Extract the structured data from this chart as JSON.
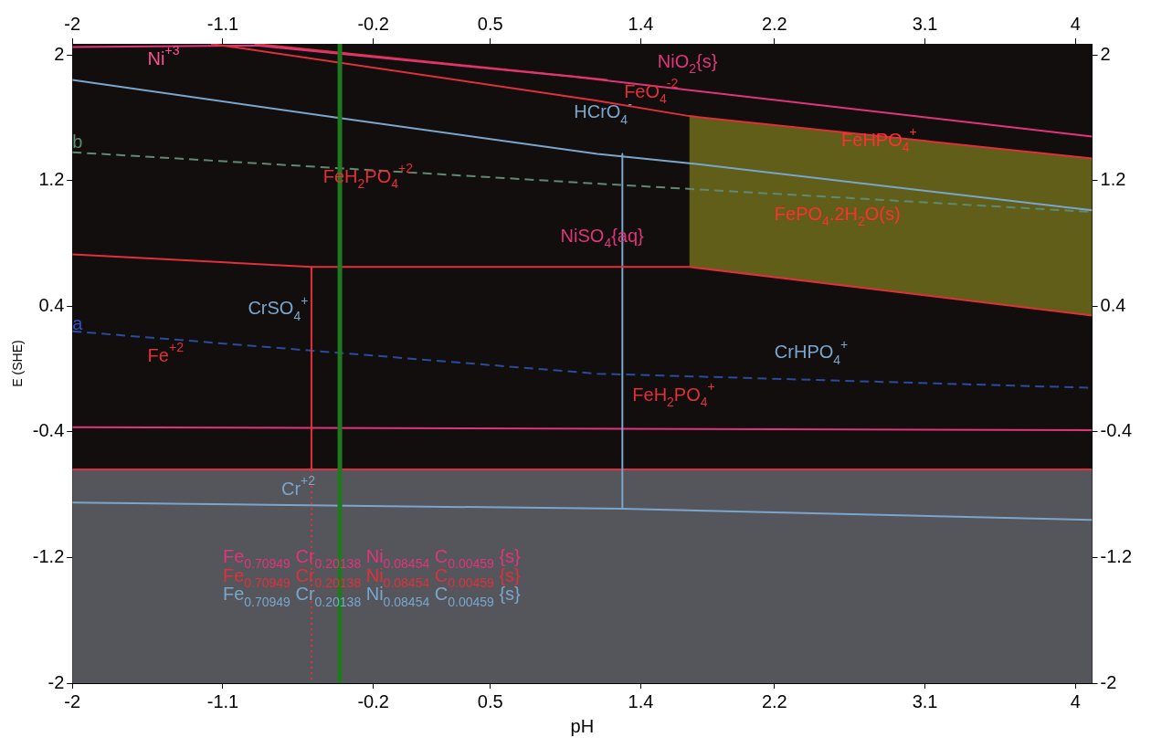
{
  "chart_data": {
    "type": "line",
    "xlabel": "pH",
    "ylabel": "E (SHE)",
    "xlim": [
      -2,
      4.1
    ],
    "ylim": [
      -2,
      2.07
    ],
    "x2lim": [
      -2,
      4.1
    ],
    "y2lim": [
      -2,
      2.07
    ],
    "xticks": [
      -2,
      -1.1,
      -0.2,
      0.5,
      1.4,
      2.2,
      3.1,
      4
    ],
    "x2ticks": [
      -2,
      -1.1,
      -0.2,
      0.5,
      1.4,
      2.2,
      3.1,
      4
    ],
    "yticks": [
      2,
      1.2,
      0.4,
      -0.4,
      -1.2,
      -2
    ],
    "y2ticks": [
      2,
      1.2,
      0.4,
      -0.4,
      -1.2,
      -2
    ],
    "grid": false,
    "legend": false,
    "series": [
      {
        "color": "#e0303a",
        "x": [
          -1.17,
          1.13,
          1.69,
          4.1
        ],
        "values": [
          2.07,
          1.71,
          1.61,
          1.34
        ],
        "upper": [
          null,
          null,
          1.61,
          1.34
        ],
        "lower": [
          null,
          null,
          0.65,
          0.34
        ]
      },
      {
        "color": "#e0357a",
        "x": [
          -2,
          -0.9,
          1.0,
          4.1
        ],
        "values": [
          2.05,
          2.06,
          1.86,
          1.48
        ]
      },
      {
        "color": "#e0303a",
        "x": [
          -0.91,
          1.2
        ],
        "values": [
          2.07,
          1.84
        ]
      },
      {
        "color": "#7aa6cc",
        "x": [
          -2,
          -0.42,
          1.14,
          1.69,
          4.1
        ],
        "values": [
          1.84,
          1.6,
          1.37,
          1.31,
          1.01
        ]
      },
      {
        "color": "#5f8a70",
        "line_style": "dashed",
        "x": [
          -2,
          1.14,
          4.1
        ],
        "values": [
          1.38,
          1.18,
          1.0
        ]
      },
      {
        "color": "#e0303a",
        "x": [
          -2,
          -0.57,
          1.69,
          4.1
        ],
        "values": [
          0.73,
          0.65,
          0.65,
          0.34
        ]
      },
      {
        "color": "#e0303a",
        "x": [
          -0.57,
          -0.57
        ],
        "values": [
          0.65,
          -0.64
        ]
      },
      {
        "color": "#e0303a",
        "line_style": "dotted",
        "x": [
          -0.57,
          -0.57
        ],
        "values": [
          -0.64,
          -2
        ]
      },
      {
        "color": "#7aa6cc",
        "x": [
          1.29,
          1.29
        ],
        "values": [
          1.37,
          -0.88
        ]
      },
      {
        "color": "#2a4c9a",
        "line_style": "dashed",
        "x": [
          -2,
          1.14,
          4.1
        ],
        "values": [
          0.24,
          -0.03,
          -0.12
        ]
      },
      {
        "color": "#e0357a",
        "x": [
          -2,
          4.1
        ],
        "values": [
          -0.37,
          -0.39
        ]
      },
      {
        "color": "#e0303a",
        "x": [
          -2,
          4.1
        ],
        "values": [
          -0.64,
          -0.64
        ]
      },
      {
        "color": "#7aa6cc",
        "x": [
          -2,
          1.29,
          4.1
        ],
        "values": [
          -0.85,
          -0.89,
          -0.96
        ]
      }
    ],
    "bands": [
      {
        "axis": "y",
        "from": -2,
        "to": -0.64,
        "color": "#55555c"
      }
    ],
    "ref_lines": [
      {
        "axis": "x",
        "value": -0.4,
        "color": "#1f7a1f"
      }
    ],
    "annotations": [
      "Ni$^{+3}$",
      "NiO$_{2}${s}",
      "FeO$_{4}$$^{-2}$",
      "HCrO$_{4}$$^{-}$",
      "FeHPO$_{4}$$^{+}$",
      "b",
      "FeH$_{2}$PO$_{4}$$^{+2}$",
      "FePO$_{4}$.2H$_{2}$O(s)",
      "NiSO$_{4}${aq}",
      "CrSO$_{4}$$^{+}$",
      "a",
      "Fe$^{+2}$",
      "FeH$_{2}$PO$_{4}$$^{+}$",
      "CrHPO$_{4}$$^{+}$",
      "Cr$^{+2}$",
      "Fe$_{0.70949}$ Cr$_{0.20138}$ Ni$_{0.08454}$ C$_{0.00459}$ {s}",
      "Fe$_{0.70949}$ Cr$_{0.20138}$ Ni$_{0.08454}$ C$_{0.00459}$ {s}",
      "Fe$_{0.70949}$ Cr$_{0.20138}$ Ni$_{0.08454}$ C$_{0.00459}$ {s}"
    ]
  }
}
